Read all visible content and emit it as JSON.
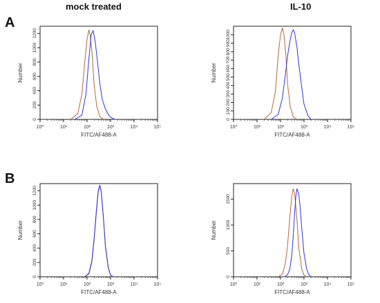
{
  "figure": {
    "col_titles": [
      "mock treated",
      "IL-10"
    ],
    "row_labels": [
      "A",
      "B"
    ]
  },
  "colors": {
    "control": "#b5653f",
    "sample": "#2d33e0",
    "axis": "#222222"
  },
  "chart_data": [
    {
      "type": "line",
      "panel": "A",
      "column": "mock treated",
      "xlabel": "FITC/AF488-A",
      "ylabel": "Number",
      "xscale": "log",
      "xlim": [
        1,
        100000
      ],
      "ylim": [
        0,
        1300
      ],
      "yticks": [
        0,
        200,
        400,
        600,
        800,
        1000,
        1200
      ],
      "xtick_labels": [
        "10⁰",
        "10¹",
        "10²",
        "10³",
        "10⁴",
        "10⁵"
      ],
      "series": [
        {
          "x": [
            20,
            40,
            60,
            80,
            100,
            120,
            140,
            170,
            200,
            260,
            350,
            500
          ],
          "y": [
            0,
            80,
            350,
            800,
            1120,
            1250,
            1150,
            850,
            480,
            180,
            40,
            0
          ]
        },
        {
          "x": [
            30,
            60,
            90,
            120,
            150,
            180,
            220,
            280,
            350,
            450,
            600,
            800,
            1000,
            1500
          ],
          "y": [
            0,
            60,
            350,
            850,
            1180,
            1240,
            1100,
            800,
            500,
            270,
            150,
            70,
            30,
            0
          ]
        }
      ]
    },
    {
      "type": "line",
      "panel": "A",
      "column": "IL-10",
      "xlabel": "FITC/AF488-A",
      "ylabel": "Number",
      "xscale": "log",
      "xlim": [
        1,
        100000
      ],
      "ylim": [
        0,
        1100
      ],
      "yticks": [
        0,
        100,
        200,
        300,
        400,
        500,
        600,
        700,
        800,
        900,
        1000
      ],
      "xtick_labels": [
        "10⁰",
        "10¹",
        "10²",
        "10³",
        "10⁴",
        "10⁵"
      ],
      "series": [
        {
          "x": [
            20,
            40,
            60,
            80,
            100,
            120,
            140,
            170,
            200,
            260,
            350,
            500
          ],
          "y": [
            0,
            80,
            320,
            760,
            1000,
            1080,
            1000,
            750,
            420,
            150,
            30,
            0
          ]
        },
        {
          "x": [
            40,
            80,
            120,
            160,
            200,
            250,
            300,
            350,
            400,
            500,
            600,
            800,
            1000,
            1500,
            2000
          ],
          "y": [
            0,
            60,
            250,
            520,
            750,
            920,
            1020,
            1060,
            1020,
            850,
            650,
            380,
            180,
            40,
            0
          ]
        }
      ]
    },
    {
      "type": "line",
      "panel": "B",
      "column": "mock treated",
      "xlabel": "FITC/AF488-A",
      "ylabel": "Number",
      "xscale": "log",
      "xlim": [
        1,
        100000
      ],
      "ylim": [
        0,
        1300
      ],
      "yticks": [
        0,
        200,
        400,
        600,
        800,
        1000,
        1200
      ],
      "xtick_labels": [
        "10⁰",
        "10¹",
        "10²",
        "10³",
        "10⁴",
        "10⁵"
      ],
      "series": [
        {
          "x": [
            80,
            120,
            160,
            200,
            250,
            300,
            350,
            400,
            500,
            600,
            800,
            1000,
            1300
          ],
          "y": [
            0,
            40,
            200,
            500,
            900,
            1180,
            1270,
            1180,
            800,
            420,
            120,
            20,
            0
          ]
        },
        {
          "x": [
            80,
            120,
            160,
            200,
            250,
            300,
            350,
            400,
            500,
            600,
            800,
            1000,
            1300
          ],
          "y": [
            0,
            50,
            220,
            530,
            930,
            1200,
            1280,
            1190,
            820,
            440,
            130,
            25,
            0
          ]
        }
      ]
    },
    {
      "type": "line",
      "panel": "B",
      "column": "IL-10",
      "xlabel": "FITC/AF488-A",
      "ylabel": "Number",
      "xscale": "log",
      "xlim": [
        1,
        100000
      ],
      "ylim": [
        0,
        1800
      ],
      "yticks": [
        0,
        500,
        1000,
        1500
      ],
      "xtick_labels": [
        "10⁰",
        "10¹",
        "10²",
        "10³",
        "10⁴",
        "10⁵"
      ],
      "series": [
        {
          "x": [
            80,
            120,
            160,
            200,
            250,
            300,
            350,
            400,
            500,
            600,
            800,
            1000,
            1300
          ],
          "y": [
            0,
            50,
            250,
            600,
            1150,
            1550,
            1700,
            1600,
            1100,
            550,
            150,
            30,
            0
          ]
        },
        {
          "x": [
            150,
            200,
            250,
            300,
            350,
            400,
            450,
            500,
            600,
            700,
            800,
            1000,
            1300,
            1600,
            2000
          ],
          "y": [
            0,
            40,
            150,
            400,
            800,
            1250,
            1550,
            1700,
            1600,
            1300,
            950,
            450,
            150,
            40,
            0
          ]
        }
      ]
    }
  ]
}
